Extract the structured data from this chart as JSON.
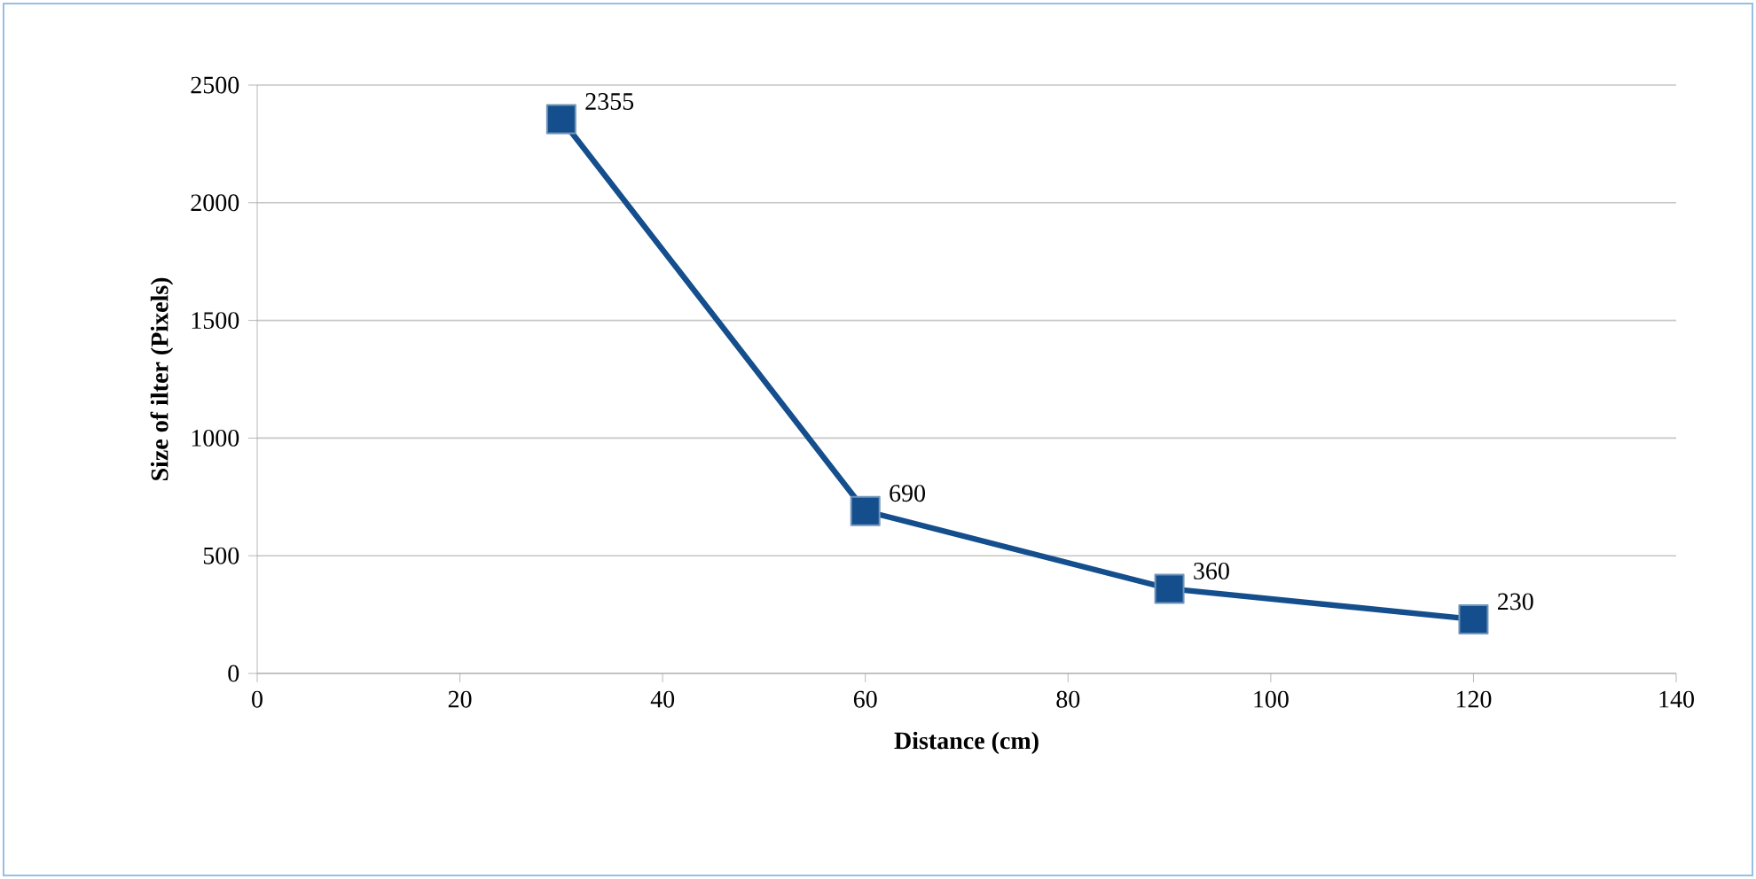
{
  "chart_data": {
    "type": "line",
    "xlabel": "Distance (cm)",
    "ylabel": "Size of ilter (Pixels)",
    "x": [
      30,
      60,
      90,
      120
    ],
    "values": [
      2355,
      690,
      360,
      230
    ],
    "color": "#144e8c",
    "xlim": [
      0,
      140
    ],
    "xticks": [
      0,
      20,
      40,
      60,
      80,
      100,
      120,
      140
    ],
    "ylim": [
      0,
      2500
    ],
    "yticks": [
      0,
      500,
      1000,
      1500,
      2000,
      2500
    ],
    "grid": "y",
    "marker": "square",
    "line_style": "solid",
    "data_labels": true
  }
}
